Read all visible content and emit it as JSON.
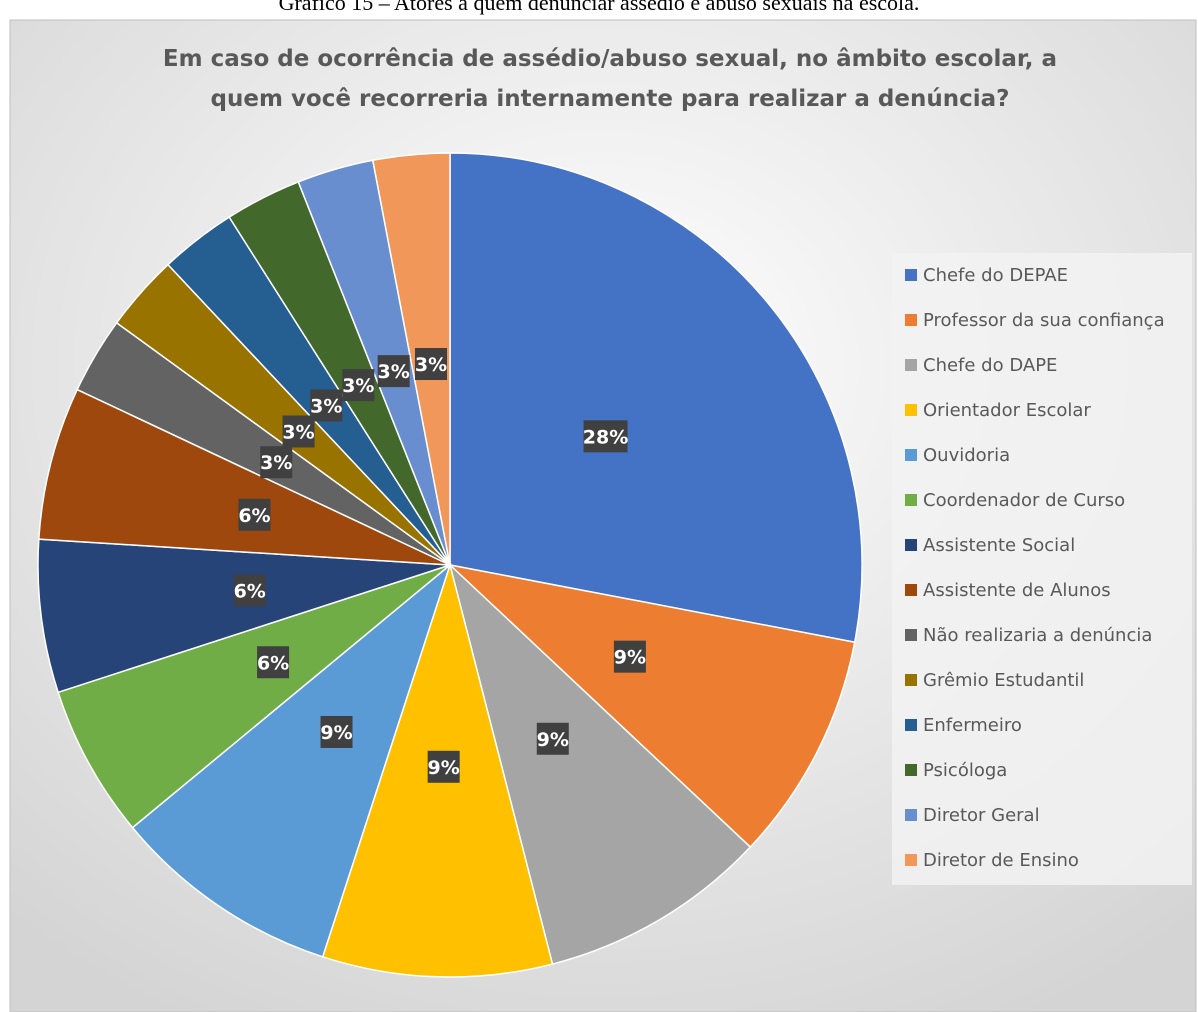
{
  "caption": "Gráfico 15 – Atores a quem denunciar assédio e abuso sexuais na escola.",
  "chart_data": {
    "type": "pie",
    "title": [
      "Em caso de ocorrência de assédio/abuso sexual, no âmbito escolar, a",
      "quem você recorreria internamente para realizar a denúncia?"
    ],
    "categories": [
      "Chefe do DEPAE",
      "Professor da sua confiança",
      "Chefe do DAPE",
      "Orientador Escolar",
      "Ouvidoria",
      "Coordenador de Curso",
      "Assistente Social",
      "Assistente de Alunos",
      "Não realizaria a denúncia",
      "Grêmio Estudantil",
      "Enfermeiro",
      "Psicóloga",
      "Diretor Geral",
      "Diretor de Ensino"
    ],
    "values": [
      28,
      9,
      9,
      9,
      9,
      6,
      6,
      6,
      3,
      3,
      3,
      3,
      3,
      3
    ],
    "value_labels": [
      "28%",
      "9%",
      "9%",
      "9%",
      "9%",
      "6%",
      "6%",
      "6%",
      "3%",
      "3%",
      "3%",
      "3%",
      "3%",
      "3%"
    ],
    "colors": [
      "#4472c4",
      "#ed7d31",
      "#a5a5a5",
      "#ffc000",
      "#5b9bd5",
      "#70ad47",
      "#264478",
      "#9e480e",
      "#636363",
      "#997300",
      "#255e91",
      "#43682b",
      "#698ed0",
      "#f1975a"
    ],
    "legend": "right"
  }
}
